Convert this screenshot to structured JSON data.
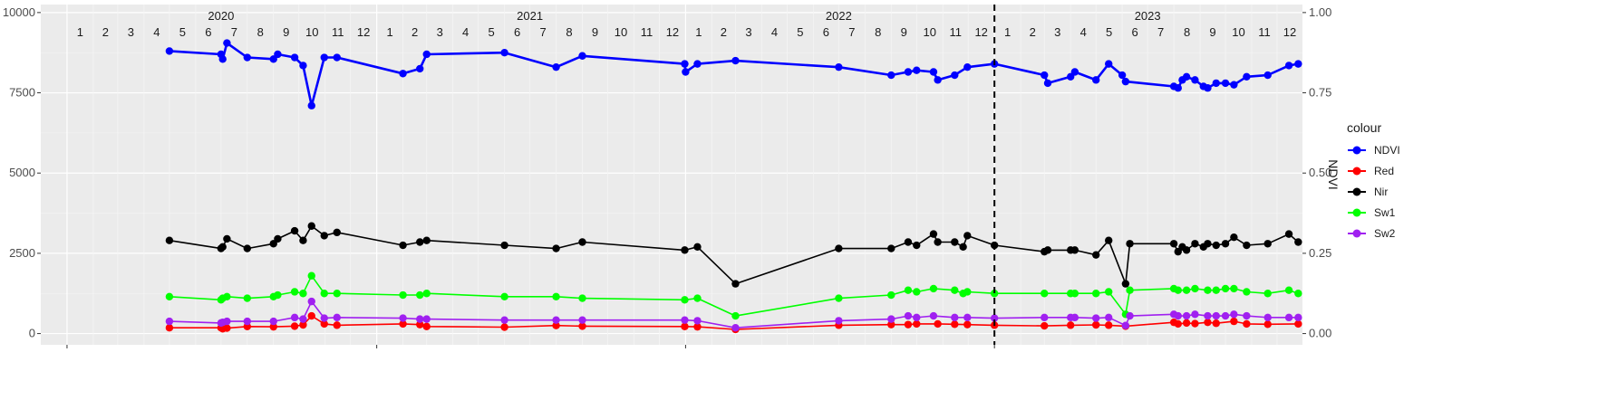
{
  "chart_data": {
    "type": "line",
    "x_axis": {
      "type": "date",
      "range": [
        "2019-12-01",
        "2023-12-31"
      ],
      "years": [
        {
          "label": "2020",
          "center": "2020-07-01"
        },
        {
          "label": "2021",
          "center": "2021-07-01"
        },
        {
          "label": "2022",
          "center": "2022-07-01"
        },
        {
          "label": "2023",
          "center": "2023-07-01"
        }
      ],
      "month_labels": [
        "1",
        "2",
        "3",
        "4",
        "5",
        "6",
        "7",
        "8",
        "9",
        "10",
        "11",
        "12"
      ],
      "vline": "2023-01-01",
      "major_breaks": [
        "2020-01-01",
        "2021-01-01",
        "2022-01-01",
        "2023-01-01"
      ]
    },
    "y_left": {
      "ticks": [
        0,
        2500,
        5000,
        7500,
        10000
      ],
      "tick_labels": [
        "0",
        "2500",
        "5000",
        "7500",
        "10000"
      ],
      "range": [
        -350,
        10250
      ]
    },
    "y_right": {
      "title": "NDVI",
      "ticks": [
        0,
        0.25,
        0.5,
        0.75,
        1.0
      ],
      "tick_labels": [
        "0.00",
        "0.25",
        "0.50",
        "0.75",
        "1.00"
      ],
      "scale": 10000
    },
    "legend": {
      "title": "colour",
      "placement": "right"
    },
    "series": [
      {
        "name": "NDVI",
        "color": "#0000ff",
        "points": [
          [
            "2020-05-01",
            8800
          ],
          [
            "2020-07-01",
            8700
          ],
          [
            "2020-07-03",
            8550
          ],
          [
            "2020-07-08",
            9050
          ],
          [
            "2020-08-01",
            8600
          ],
          [
            "2020-09-01",
            8550
          ],
          [
            "2020-09-06",
            8700
          ],
          [
            "2020-09-26",
            8600
          ],
          [
            "2020-10-06",
            8350
          ],
          [
            "2020-10-16",
            7100
          ],
          [
            "2020-10-31",
            8600
          ],
          [
            "2020-11-15",
            8600
          ],
          [
            "2021-02-01",
            8100
          ],
          [
            "2021-02-21",
            8250
          ],
          [
            "2021-03-01",
            8700
          ],
          [
            "2021-06-01",
            8750
          ],
          [
            "2021-08-01",
            8300
          ],
          [
            "2021-09-01",
            8650
          ],
          [
            "2021-12-31",
            8400
          ],
          [
            "2022-01-01",
            8150
          ],
          [
            "2022-01-15",
            8400
          ],
          [
            "2022-03-01",
            8500
          ],
          [
            "2022-07-01",
            8300
          ],
          [
            "2022-09-01",
            8050
          ],
          [
            "2022-09-21",
            8150
          ],
          [
            "2022-10-01",
            8200
          ],
          [
            "2022-10-21",
            8150
          ],
          [
            "2022-10-26",
            7900
          ],
          [
            "2022-11-15",
            8050
          ],
          [
            "2022-11-30",
            8300
          ],
          [
            "2023-01-01",
            8400
          ],
          [
            "2023-03-01",
            8050
          ],
          [
            "2023-03-05",
            7800
          ],
          [
            "2023-04-01",
            8000
          ],
          [
            "2023-04-06",
            8150
          ],
          [
            "2023-05-01",
            7900
          ],
          [
            "2023-05-16",
            8400
          ],
          [
            "2023-06-01",
            8050
          ],
          [
            "2023-06-05",
            7850
          ],
          [
            "2023-08-01",
            7700
          ],
          [
            "2023-08-06",
            7650
          ],
          [
            "2023-08-11",
            7900
          ],
          [
            "2023-08-16",
            8000
          ],
          [
            "2023-08-26",
            7900
          ],
          [
            "2023-09-05",
            7700
          ],
          [
            "2023-09-10",
            7650
          ],
          [
            "2023-09-20",
            7800
          ],
          [
            "2023-10-01",
            7800
          ],
          [
            "2023-10-11",
            7750
          ],
          [
            "2023-10-26",
            8000
          ],
          [
            "2023-11-20",
            8050
          ],
          [
            "2023-12-15",
            8350
          ],
          [
            "2023-12-26",
            8400
          ]
        ]
      },
      {
        "name": "Red",
        "color": "#ff0000",
        "points": [
          [
            "2020-05-01",
            180
          ],
          [
            "2020-07-01",
            180
          ],
          [
            "2020-07-03",
            150
          ],
          [
            "2020-07-08",
            170
          ],
          [
            "2020-08-01",
            220
          ],
          [
            "2020-09-01",
            210
          ],
          [
            "2020-09-26",
            230
          ],
          [
            "2020-10-06",
            270
          ],
          [
            "2020-10-16",
            550
          ],
          [
            "2020-10-31",
            300
          ],
          [
            "2020-11-15",
            260
          ],
          [
            "2021-02-01",
            300
          ],
          [
            "2021-02-21",
            280
          ],
          [
            "2021-03-01",
            220
          ],
          [
            "2021-06-01",
            200
          ],
          [
            "2021-08-01",
            250
          ],
          [
            "2021-09-01",
            230
          ],
          [
            "2021-12-31",
            220
          ],
          [
            "2022-01-15",
            210
          ],
          [
            "2022-03-01",
            130
          ],
          [
            "2022-07-01",
            260
          ],
          [
            "2022-09-01",
            280
          ],
          [
            "2022-09-21",
            280
          ],
          [
            "2022-10-01",
            300
          ],
          [
            "2022-10-26",
            300
          ],
          [
            "2022-11-15",
            290
          ],
          [
            "2022-11-30",
            280
          ],
          [
            "2023-01-01",
            260
          ],
          [
            "2023-03-01",
            240
          ],
          [
            "2023-04-01",
            260
          ],
          [
            "2023-05-01",
            270
          ],
          [
            "2023-05-16",
            260
          ],
          [
            "2023-06-05",
            230
          ],
          [
            "2023-08-01",
            350
          ],
          [
            "2023-08-06",
            300
          ],
          [
            "2023-08-16",
            330
          ],
          [
            "2023-08-26",
            310
          ],
          [
            "2023-09-10",
            350
          ],
          [
            "2023-09-20",
            320
          ],
          [
            "2023-10-11",
            380
          ],
          [
            "2023-10-26",
            300
          ],
          [
            "2023-11-20",
            290
          ],
          [
            "2023-12-26",
            300
          ]
        ]
      },
      {
        "name": "Nir",
        "color": "#000000",
        "points": [
          [
            "2020-05-01",
            2900
          ],
          [
            "2020-07-01",
            2650
          ],
          [
            "2020-07-03",
            2700
          ],
          [
            "2020-07-08",
            2950
          ],
          [
            "2020-08-01",
            2650
          ],
          [
            "2020-09-01",
            2800
          ],
          [
            "2020-09-06",
            2950
          ],
          [
            "2020-09-26",
            3200
          ],
          [
            "2020-10-06",
            2900
          ],
          [
            "2020-10-16",
            3350
          ],
          [
            "2020-10-31",
            3050
          ],
          [
            "2020-11-15",
            3150
          ],
          [
            "2021-02-01",
            2750
          ],
          [
            "2021-02-21",
            2850
          ],
          [
            "2021-03-01",
            2900
          ],
          [
            "2021-06-01",
            2750
          ],
          [
            "2021-08-01",
            2650
          ],
          [
            "2021-09-01",
            2850
          ],
          [
            "2021-12-31",
            2600
          ],
          [
            "2022-01-15",
            2700
          ],
          [
            "2022-03-01",
            1550
          ],
          [
            "2022-07-01",
            2650
          ],
          [
            "2022-09-01",
            2650
          ],
          [
            "2022-09-21",
            2850
          ],
          [
            "2022-10-01",
            2750
          ],
          [
            "2022-10-21",
            3100
          ],
          [
            "2022-10-26",
            2850
          ],
          [
            "2022-11-15",
            2850
          ],
          [
            "2022-11-25",
            2700
          ],
          [
            "2022-11-30",
            3050
          ],
          [
            "2023-01-01",
            2750
          ],
          [
            "2023-03-01",
            2550
          ],
          [
            "2023-03-05",
            2600
          ],
          [
            "2023-04-01",
            2600
          ],
          [
            "2023-04-06",
            2600
          ],
          [
            "2023-05-01",
            2450
          ],
          [
            "2023-05-16",
            2900
          ],
          [
            "2023-06-05",
            1550
          ],
          [
            "2023-06-10",
            2800
          ],
          [
            "2023-08-01",
            2800
          ],
          [
            "2023-08-06",
            2550
          ],
          [
            "2023-08-11",
            2700
          ],
          [
            "2023-08-16",
            2600
          ],
          [
            "2023-08-26",
            2800
          ],
          [
            "2023-09-05",
            2700
          ],
          [
            "2023-09-10",
            2800
          ],
          [
            "2023-09-20",
            2750
          ],
          [
            "2023-10-01",
            2800
          ],
          [
            "2023-10-11",
            3000
          ],
          [
            "2023-10-26",
            2750
          ],
          [
            "2023-11-20",
            2800
          ],
          [
            "2023-12-15",
            3100
          ],
          [
            "2023-12-26",
            2850
          ]
        ]
      },
      {
        "name": "Sw1",
        "color": "#00ff00",
        "points": [
          [
            "2020-05-01",
            1150
          ],
          [
            "2020-07-01",
            1050
          ],
          [
            "2020-07-03",
            1100
          ],
          [
            "2020-07-08",
            1150
          ],
          [
            "2020-08-01",
            1100
          ],
          [
            "2020-09-01",
            1150
          ],
          [
            "2020-09-06",
            1200
          ],
          [
            "2020-09-26",
            1300
          ],
          [
            "2020-10-06",
            1250
          ],
          [
            "2020-10-16",
            1800
          ],
          [
            "2020-10-31",
            1250
          ],
          [
            "2020-11-15",
            1250
          ],
          [
            "2021-02-01",
            1200
          ],
          [
            "2021-02-21",
            1200
          ],
          [
            "2021-03-01",
            1250
          ],
          [
            "2021-06-01",
            1150
          ],
          [
            "2021-08-01",
            1150
          ],
          [
            "2021-09-01",
            1100
          ],
          [
            "2021-12-31",
            1050
          ],
          [
            "2022-01-15",
            1100
          ],
          [
            "2022-03-01",
            550
          ],
          [
            "2022-07-01",
            1100
          ],
          [
            "2022-09-01",
            1200
          ],
          [
            "2022-09-21",
            1350
          ],
          [
            "2022-10-01",
            1300
          ],
          [
            "2022-10-21",
            1400
          ],
          [
            "2022-11-15",
            1350
          ],
          [
            "2022-11-25",
            1250
          ],
          [
            "2022-11-30",
            1300
          ],
          [
            "2023-01-01",
            1250
          ],
          [
            "2023-03-01",
            1250
          ],
          [
            "2023-04-01",
            1250
          ],
          [
            "2023-04-06",
            1250
          ],
          [
            "2023-05-01",
            1250
          ],
          [
            "2023-05-16",
            1300
          ],
          [
            "2023-06-05",
            600
          ],
          [
            "2023-06-10",
            1350
          ],
          [
            "2023-08-01",
            1400
          ],
          [
            "2023-08-06",
            1350
          ],
          [
            "2023-08-16",
            1350
          ],
          [
            "2023-08-26",
            1400
          ],
          [
            "2023-09-10",
            1350
          ],
          [
            "2023-09-20",
            1350
          ],
          [
            "2023-10-01",
            1400
          ],
          [
            "2023-10-11",
            1400
          ],
          [
            "2023-10-26",
            1300
          ],
          [
            "2023-11-20",
            1250
          ],
          [
            "2023-12-15",
            1350
          ],
          [
            "2023-12-26",
            1250
          ]
        ]
      },
      {
        "name": "Sw2",
        "color": "#a020f0",
        "points": [
          [
            "2020-05-01",
            380
          ],
          [
            "2020-07-01",
            330
          ],
          [
            "2020-07-03",
            350
          ],
          [
            "2020-07-08",
            380
          ],
          [
            "2020-08-01",
            380
          ],
          [
            "2020-09-01",
            380
          ],
          [
            "2020-09-26",
            500
          ],
          [
            "2020-10-06",
            450
          ],
          [
            "2020-10-16",
            1000
          ],
          [
            "2020-10-31",
            480
          ],
          [
            "2020-11-15",
            500
          ],
          [
            "2021-02-01",
            480
          ],
          [
            "2021-02-21",
            450
          ],
          [
            "2021-03-01",
            450
          ],
          [
            "2021-06-01",
            420
          ],
          [
            "2021-08-01",
            420
          ],
          [
            "2021-09-01",
            420
          ],
          [
            "2021-12-31",
            420
          ],
          [
            "2022-01-15",
            400
          ],
          [
            "2022-03-01",
            180
          ],
          [
            "2022-07-01",
            400
          ],
          [
            "2022-09-01",
            450
          ],
          [
            "2022-09-21",
            550
          ],
          [
            "2022-10-01",
            500
          ],
          [
            "2022-10-21",
            550
          ],
          [
            "2022-11-15",
            500
          ],
          [
            "2022-11-30",
            500
          ],
          [
            "2023-01-01",
            480
          ],
          [
            "2023-03-01",
            500
          ],
          [
            "2023-04-01",
            500
          ],
          [
            "2023-04-06",
            500
          ],
          [
            "2023-05-01",
            480
          ],
          [
            "2023-05-16",
            500
          ],
          [
            "2023-06-05",
            250
          ],
          [
            "2023-06-10",
            550
          ],
          [
            "2023-08-01",
            600
          ],
          [
            "2023-08-06",
            550
          ],
          [
            "2023-08-16",
            550
          ],
          [
            "2023-08-26",
            600
          ],
          [
            "2023-09-10",
            550
          ],
          [
            "2023-09-20",
            550
          ],
          [
            "2023-10-01",
            550
          ],
          [
            "2023-10-11",
            600
          ],
          [
            "2023-10-26",
            550
          ],
          [
            "2023-11-20",
            500
          ],
          [
            "2023-12-15",
            500
          ],
          [
            "2023-12-26",
            500
          ]
        ]
      }
    ]
  }
}
